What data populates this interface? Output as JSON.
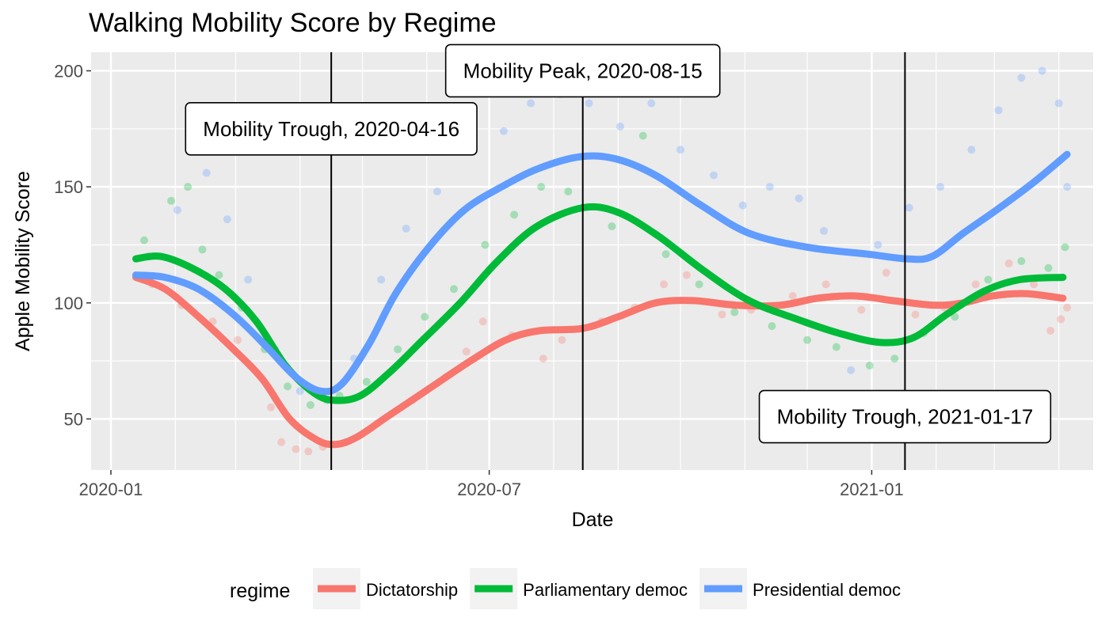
{
  "chart_data": {
    "type": "scatter",
    "title": "Walking Mobility Score by Regime",
    "xlabel": "Date",
    "ylabel": "Apple Mobility Score",
    "x_range": [
      "2020-01-01",
      "2021-04-08"
    ],
    "ylim": [
      28,
      208
    ],
    "x_ticks": [
      "2020-01",
      "2020-07",
      "2021-01"
    ],
    "y_ticks": [
      50,
      100,
      150,
      200
    ],
    "grid": true,
    "legend": {
      "title": "regime",
      "position": "bottom",
      "entries": [
        "Dictatorship",
        "Parliamentary democ",
        "Presidential democ"
      ]
    },
    "colors": {
      "Dictatorship": "#F8766D",
      "Parliamentary democ": "#00BA38",
      "Presidential democ": "#619CFF",
      "panel": "#EBEBEB"
    },
    "vlines": [
      {
        "date": "2020-04-16",
        "label": "Mobility Trough, 2020-04-16",
        "label_y": 175
      },
      {
        "date": "2020-08-15",
        "label": "Mobility Peak, 2020-08-15",
        "label_y": 200
      },
      {
        "date": "2021-01-17",
        "label": "Mobility Trough, 2021-01-17",
        "label_y": 51
      }
    ],
    "series": [
      {
        "name": "Dictatorship",
        "smooth": [
          {
            "x": "2020-01-13",
            "y": 111
          },
          {
            "x": "2020-01-27",
            "y": 106
          },
          {
            "x": "2020-02-11",
            "y": 95
          },
          {
            "x": "2020-02-29",
            "y": 80
          },
          {
            "x": "2020-03-14",
            "y": 67
          },
          {
            "x": "2020-03-27",
            "y": 50
          },
          {
            "x": "2020-04-09",
            "y": 41
          },
          {
            "x": "2020-04-18",
            "y": 39
          },
          {
            "x": "2020-04-28",
            "y": 42
          },
          {
            "x": "2020-05-13",
            "y": 51
          },
          {
            "x": "2020-06-02",
            "y": 63
          },
          {
            "x": "2020-06-22",
            "y": 75
          },
          {
            "x": "2020-07-09",
            "y": 84
          },
          {
            "x": "2020-07-25",
            "y": 88
          },
          {
            "x": "2020-08-15",
            "y": 89
          },
          {
            "x": "2020-09-01",
            "y": 94
          },
          {
            "x": "2020-09-19",
            "y": 100
          },
          {
            "x": "2020-10-07",
            "y": 101
          },
          {
            "x": "2020-10-28",
            "y": 99
          },
          {
            "x": "2020-11-18",
            "y": 99
          },
          {
            "x": "2020-12-06",
            "y": 102
          },
          {
            "x": "2020-12-24",
            "y": 103
          },
          {
            "x": "2021-01-11",
            "y": 101
          },
          {
            "x": "2021-01-31",
            "y": 99
          },
          {
            "x": "2021-02-14",
            "y": 100
          },
          {
            "x": "2021-02-28",
            "y": 103
          },
          {
            "x": "2021-03-16",
            "y": 104
          },
          {
            "x": "2021-04-03",
            "y": 102
          }
        ],
        "points": [
          {
            "x": "2020-01-21",
            "y": 108
          },
          {
            "x": "2020-02-04",
            "y": 99
          },
          {
            "x": "2020-02-19",
            "y": 92
          },
          {
            "x": "2020-03-02",
            "y": 84
          },
          {
            "x": "2020-03-18",
            "y": 55
          },
          {
            "x": "2020-03-23",
            "y": 40
          },
          {
            "x": "2020-03-30",
            "y": 37
          },
          {
            "x": "2020-04-05",
            "y": 36
          },
          {
            "x": "2020-04-12",
            "y": 38
          },
          {
            "x": "2020-04-23",
            "y": 40
          },
          {
            "x": "2020-05-08",
            "y": 48
          },
          {
            "x": "2020-05-25",
            "y": 58
          },
          {
            "x": "2020-06-10",
            "y": 68
          },
          {
            "x": "2020-06-20",
            "y": 79
          },
          {
            "x": "2020-06-28",
            "y": 92
          },
          {
            "x": "2020-07-12",
            "y": 86
          },
          {
            "x": "2020-07-27",
            "y": 76
          },
          {
            "x": "2020-08-05",
            "y": 84
          },
          {
            "x": "2020-08-24",
            "y": 92
          },
          {
            "x": "2020-09-09",
            "y": 98
          },
          {
            "x": "2020-09-23",
            "y": 108
          },
          {
            "x": "2020-10-04",
            "y": 112
          },
          {
            "x": "2020-10-21",
            "y": 95
          },
          {
            "x": "2020-11-04",
            "y": 97
          },
          {
            "x": "2020-11-24",
            "y": 103
          },
          {
            "x": "2020-12-10",
            "y": 108
          },
          {
            "x": "2020-12-27",
            "y": 97
          },
          {
            "x": "2021-01-08",
            "y": 113
          },
          {
            "x": "2021-01-22",
            "y": 95
          },
          {
            "x": "2021-02-05",
            "y": 98
          },
          {
            "x": "2021-02-20",
            "y": 108
          },
          {
            "x": "2021-03-08",
            "y": 117
          },
          {
            "x": "2021-03-20",
            "y": 108
          },
          {
            "x": "2021-03-28",
            "y": 88
          },
          {
            "x": "2021-04-02",
            "y": 93
          },
          {
            "x": "2021-04-05",
            "y": 98
          }
        ]
      },
      {
        "name": "Parliamentary democ",
        "smooth": [
          {
            "x": "2020-01-13",
            "y": 119
          },
          {
            "x": "2020-01-25",
            "y": 120
          },
          {
            "x": "2020-02-09",
            "y": 115
          },
          {
            "x": "2020-02-25",
            "y": 106
          },
          {
            "x": "2020-03-11",
            "y": 92
          },
          {
            "x": "2020-03-25",
            "y": 73
          },
          {
            "x": "2020-04-08",
            "y": 61
          },
          {
            "x": "2020-04-18",
            "y": 58
          },
          {
            "x": "2020-04-30",
            "y": 60
          },
          {
            "x": "2020-05-14",
            "y": 70
          },
          {
            "x": "2020-05-30",
            "y": 84
          },
          {
            "x": "2020-06-17",
            "y": 100
          },
          {
            "x": "2020-07-05",
            "y": 118
          },
          {
            "x": "2020-07-24",
            "y": 133
          },
          {
            "x": "2020-08-15",
            "y": 141
          },
          {
            "x": "2020-09-01",
            "y": 139
          },
          {
            "x": "2020-09-20",
            "y": 129
          },
          {
            "x": "2020-10-12",
            "y": 114
          },
          {
            "x": "2020-11-03",
            "y": 101
          },
          {
            "x": "2020-11-26",
            "y": 93
          },
          {
            "x": "2020-12-16",
            "y": 87
          },
          {
            "x": "2021-01-05",
            "y": 83
          },
          {
            "x": "2021-01-21",
            "y": 85
          },
          {
            "x": "2021-02-06",
            "y": 95
          },
          {
            "x": "2021-02-24",
            "y": 105
          },
          {
            "x": "2021-03-13",
            "y": 110
          },
          {
            "x": "2021-04-03",
            "y": 111
          }
        ],
        "points": [
          {
            "x": "2020-01-17",
            "y": 127
          },
          {
            "x": "2020-01-30",
            "y": 144
          },
          {
            "x": "2020-02-07",
            "y": 150
          },
          {
            "x": "2020-02-14",
            "y": 123
          },
          {
            "x": "2020-02-22",
            "y": 112
          },
          {
            "x": "2020-03-04",
            "y": 98
          },
          {
            "x": "2020-03-15",
            "y": 80
          },
          {
            "x": "2020-03-26",
            "y": 64
          },
          {
            "x": "2020-04-06",
            "y": 56
          },
          {
            "x": "2020-04-20",
            "y": 60
          },
          {
            "x": "2020-05-03",
            "y": 66
          },
          {
            "x": "2020-05-18",
            "y": 80
          },
          {
            "x": "2020-05-31",
            "y": 94
          },
          {
            "x": "2020-06-14",
            "y": 106
          },
          {
            "x": "2020-06-29",
            "y": 125
          },
          {
            "x": "2020-07-13",
            "y": 138
          },
          {
            "x": "2020-07-26",
            "y": 150
          },
          {
            "x": "2020-08-08",
            "y": 148
          },
          {
            "x": "2020-08-29",
            "y": 133
          },
          {
            "x": "2020-09-13",
            "y": 172
          },
          {
            "x": "2020-09-24",
            "y": 121
          },
          {
            "x": "2020-10-10",
            "y": 108
          },
          {
            "x": "2020-10-27",
            "y": 96
          },
          {
            "x": "2020-11-14",
            "y": 90
          },
          {
            "x": "2020-12-01",
            "y": 84
          },
          {
            "x": "2020-12-15",
            "y": 81
          },
          {
            "x": "2020-12-31",
            "y": 73
          },
          {
            "x": "2021-01-12",
            "y": 76
          },
          {
            "x": "2021-01-26",
            "y": 87
          },
          {
            "x": "2021-02-10",
            "y": 94
          },
          {
            "x": "2021-02-26",
            "y": 110
          },
          {
            "x": "2021-03-14",
            "y": 118
          },
          {
            "x": "2021-03-27",
            "y": 115
          },
          {
            "x": "2021-04-04",
            "y": 124
          }
        ]
      },
      {
        "name": "Presidential democ",
        "smooth": [
          {
            "x": "2020-01-13",
            "y": 112
          },
          {
            "x": "2020-01-27",
            "y": 111
          },
          {
            "x": "2020-02-12",
            "y": 106
          },
          {
            "x": "2020-02-29",
            "y": 95
          },
          {
            "x": "2020-03-16",
            "y": 81
          },
          {
            "x": "2020-03-30",
            "y": 68
          },
          {
            "x": "2020-04-11",
            "y": 62
          },
          {
            "x": "2020-04-21",
            "y": 65
          },
          {
            "x": "2020-05-04",
            "y": 82
          },
          {
            "x": "2020-05-17",
            "y": 104
          },
          {
            "x": "2020-06-02",
            "y": 124
          },
          {
            "x": "2020-06-19",
            "y": 140
          },
          {
            "x": "2020-07-07",
            "y": 150
          },
          {
            "x": "2020-07-25",
            "y": 158
          },
          {
            "x": "2020-08-14",
            "y": 163
          },
          {
            "x": "2020-08-31",
            "y": 162
          },
          {
            "x": "2020-09-19",
            "y": 155
          },
          {
            "x": "2020-10-11",
            "y": 142
          },
          {
            "x": "2020-11-03",
            "y": 130
          },
          {
            "x": "2020-12-01",
            "y": 124
          },
          {
            "x": "2020-12-30",
            "y": 121
          },
          {
            "x": "2021-01-18",
            "y": 119
          },
          {
            "x": "2021-01-30",
            "y": 120
          },
          {
            "x": "2021-02-14",
            "y": 130
          },
          {
            "x": "2021-03-02",
            "y": 140
          },
          {
            "x": "2021-03-20",
            "y": 152
          },
          {
            "x": "2021-04-05",
            "y": 164
          }
        ],
        "points": [
          {
            "x": "2020-01-19",
            "y": 120
          },
          {
            "x": "2020-02-02",
            "y": 140
          },
          {
            "x": "2020-02-16",
            "y": 156
          },
          {
            "x": "2020-02-26",
            "y": 136
          },
          {
            "x": "2020-03-07",
            "y": 110
          },
          {
            "x": "2020-03-20",
            "y": 80
          },
          {
            "x": "2020-04-01",
            "y": 62
          },
          {
            "x": "2020-04-14",
            "y": 58
          },
          {
            "x": "2020-04-27",
            "y": 76
          },
          {
            "x": "2020-05-10",
            "y": 110
          },
          {
            "x": "2020-05-22",
            "y": 132
          },
          {
            "x": "2020-06-06",
            "y": 148
          },
          {
            "x": "2020-06-22",
            "y": 168
          },
          {
            "x": "2020-07-08",
            "y": 174
          },
          {
            "x": "2020-07-21",
            "y": 186
          },
          {
            "x": "2020-08-04",
            "y": 190
          },
          {
            "x": "2020-08-18",
            "y": 186
          },
          {
            "x": "2020-09-02",
            "y": 176
          },
          {
            "x": "2020-09-17",
            "y": 186
          },
          {
            "x": "2020-10-01",
            "y": 166
          },
          {
            "x": "2020-10-17",
            "y": 155
          },
          {
            "x": "2020-10-31",
            "y": 142
          },
          {
            "x": "2020-11-13",
            "y": 150
          },
          {
            "x": "2020-11-27",
            "y": 145
          },
          {
            "x": "2020-12-09",
            "y": 131
          },
          {
            "x": "2020-12-22",
            "y": 71
          },
          {
            "x": "2021-01-04",
            "y": 125
          },
          {
            "x": "2021-01-19",
            "y": 141
          },
          {
            "x": "2021-02-03",
            "y": 150
          },
          {
            "x": "2021-02-18",
            "y": 166
          },
          {
            "x": "2021-03-03",
            "y": 183
          },
          {
            "x": "2021-03-14",
            "y": 197
          },
          {
            "x": "2021-03-24",
            "y": 200
          },
          {
            "x": "2021-04-01",
            "y": 186
          },
          {
            "x": "2021-04-05",
            "y": 150
          }
        ]
      }
    ]
  }
}
